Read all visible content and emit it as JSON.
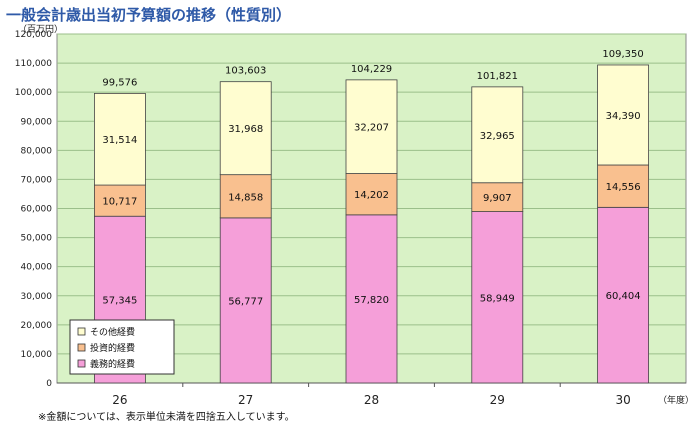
{
  "title": "一般会計歳出当初予算額の推移（性質別）",
  "unit_label": "（百万円）",
  "note": "※金額については、表示単位未満を四捨五入しています。",
  "colors": {
    "plot_bg": "#d9f2c6",
    "gridline": "#9bbf8a",
    "bar_border": "#444444",
    "mandatory": "#f59fd9",
    "investment": "#f9c08f",
    "other": "#fffdd0"
  },
  "chart_data": {
    "type": "bar",
    "stacked": true,
    "categories": [
      "26",
      "27",
      "28",
      "29",
      "30"
    ],
    "xlabel": "（年度）",
    "ylabel": "（百万円）",
    "ylim": [
      0,
      120000
    ],
    "yticks": [
      "0",
      "10,000",
      "20,000",
      "30,000",
      "40,000",
      "50,000",
      "60,000",
      "70,000",
      "80,000",
      "90,000",
      "100,000",
      "110,000",
      "120,000"
    ],
    "grid": true,
    "legend_position": "bottom-left inside",
    "series": [
      {
        "name": "義務的経費",
        "values": [
          57345,
          56777,
          57820,
          58949,
          60404
        ],
        "labels": [
          "57,345",
          "56,777",
          "57,820",
          "58,949",
          "60,404"
        ]
      },
      {
        "name": "投資的経費",
        "values": [
          10717,
          14858,
          14202,
          9907,
          14556
        ],
        "labels": [
          "10,717",
          "14,858",
          "14,202",
          "9,907",
          "14,556"
        ]
      },
      {
        "name": "その他経費",
        "values": [
          31514,
          31968,
          32207,
          32965,
          34390
        ],
        "labels": [
          "31,514",
          "31,968",
          "32,207",
          "32,965",
          "34,390"
        ]
      }
    ],
    "totals": [
      "99,576",
      "103,603",
      "104,229",
      "101,821",
      "109,350"
    ],
    "legend_order": [
      "その他経費",
      "投資的経費",
      "義務的経費"
    ]
  }
}
